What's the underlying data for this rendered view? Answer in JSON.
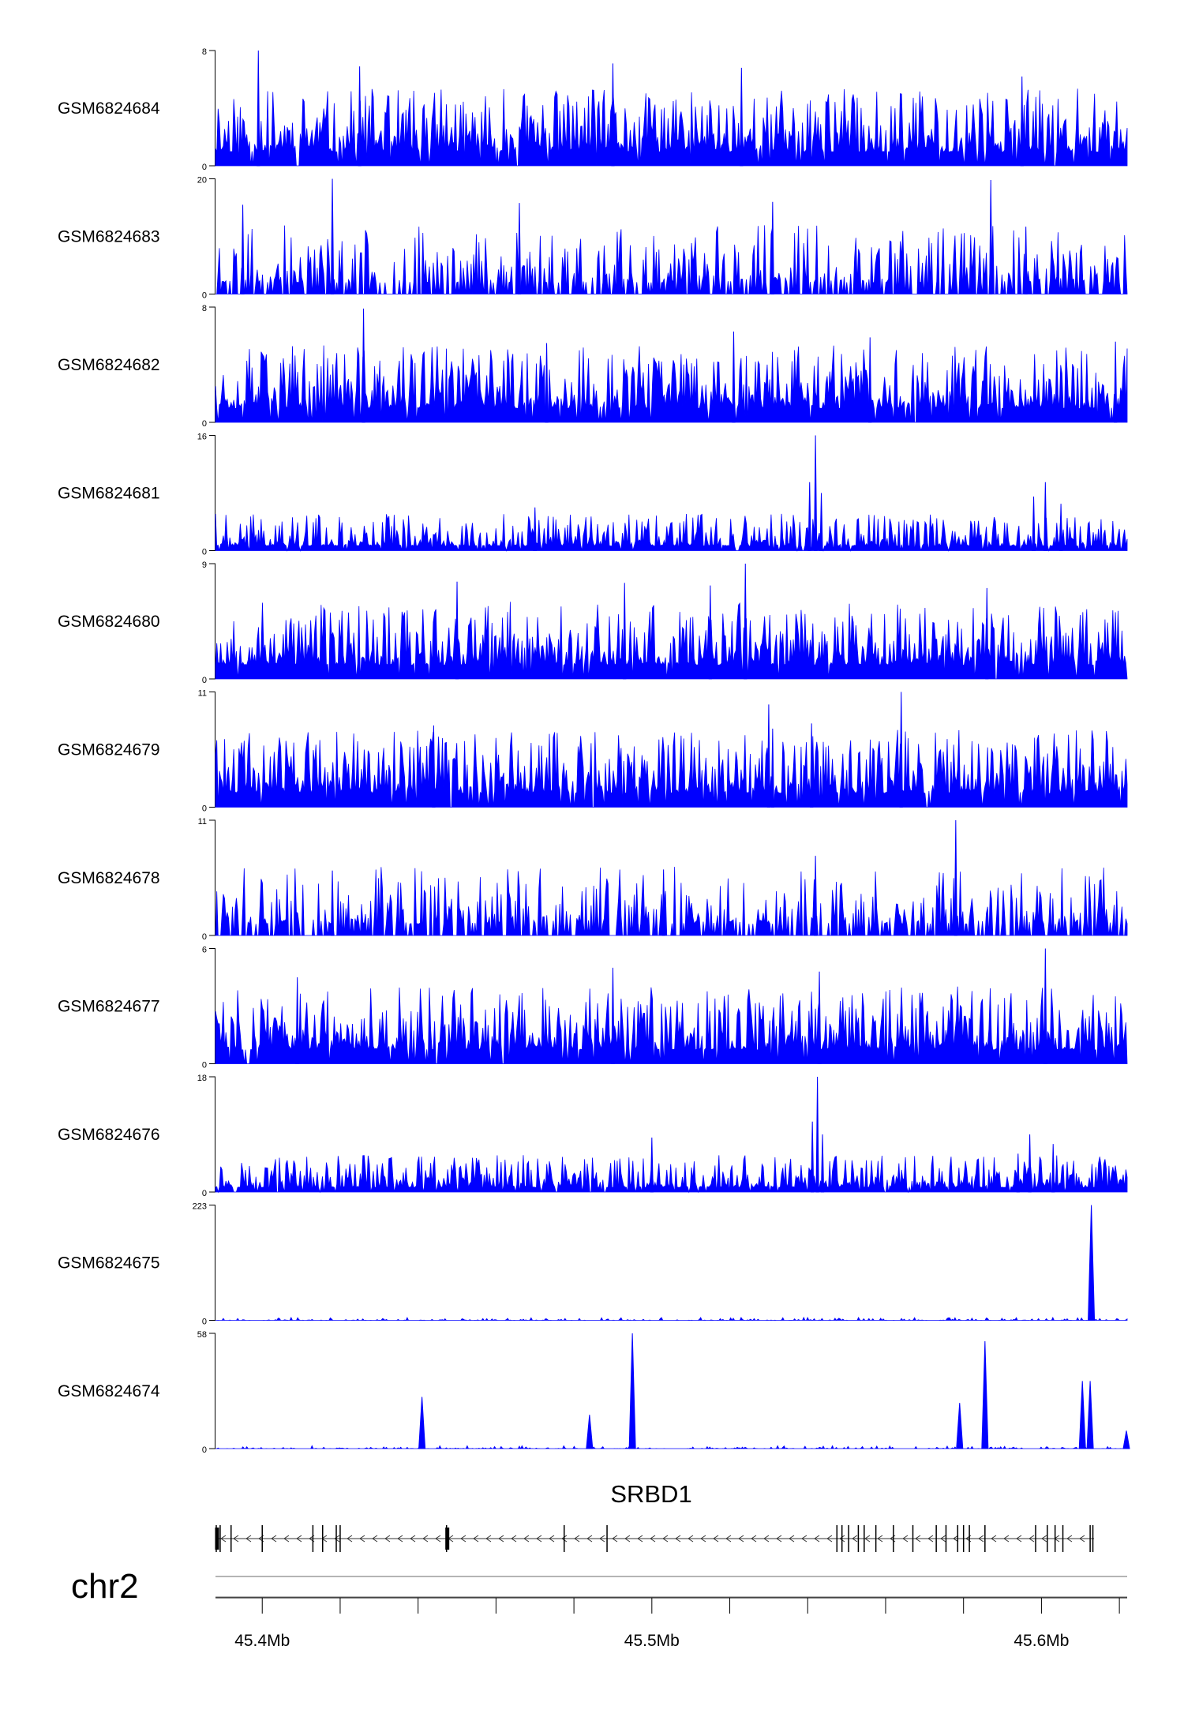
{
  "chart_data": {
    "type": "area",
    "genome": {
      "chromosome": "chr2",
      "x_range_mb": [
        45.388,
        45.622
      ],
      "x_ticks": [
        45.4,
        45.42,
        45.44,
        45.46,
        45.48,
        45.5,
        45.52,
        45.54,
        45.56,
        45.58,
        45.6,
        45.62
      ],
      "x_tick_labels": [
        {
          "value": 45.4,
          "label": "45.4Mb"
        },
        {
          "value": 45.5,
          "label": "45.5Mb"
        },
        {
          "value": 45.6,
          "label": "45.6Mb"
        }
      ]
    },
    "series_color": "#0000ff",
    "tracks": [
      {
        "name": "GSM6824684",
        "ymax": 8,
        "ymax_label": "8",
        "ymin_label": "0",
        "profile": "noise",
        "seed": 11,
        "peaks": [
          {
            "x": 45.399,
            "y": 8
          },
          {
            "x": 45.425,
            "y": 6.9
          },
          {
            "x": 45.49,
            "y": 7.1
          },
          {
            "x": 45.523,
            "y": 6.8
          },
          {
            "x": 45.595,
            "y": 6.2
          }
        ]
      },
      {
        "name": "GSM6824683",
        "ymax": 20,
        "ymax_label": "20",
        "ymin_label": "0",
        "profile": "sparse",
        "seed": 23,
        "peaks": [
          {
            "x": 45.418,
            "y": 20
          },
          {
            "x": 45.395,
            "y": 15.5
          },
          {
            "x": 45.466,
            "y": 15.8
          },
          {
            "x": 45.531,
            "y": 16
          },
          {
            "x": 45.587,
            "y": 19.8
          },
          {
            "x": 45.596,
            "y": 11.7
          }
        ]
      },
      {
        "name": "GSM6824682",
        "ymax": 8,
        "ymax_label": "8",
        "ymin_label": "0",
        "profile": "noise",
        "seed": 37,
        "peaks": [
          {
            "x": 45.426,
            "y": 7.9
          },
          {
            "x": 45.473,
            "y": 5.5
          },
          {
            "x": 45.521,
            "y": 6.3
          },
          {
            "x": 45.556,
            "y": 5.9
          },
          {
            "x": 45.619,
            "y": 5.6
          }
        ]
      },
      {
        "name": "GSM6824681",
        "ymax": 16,
        "ymax_label": "16",
        "ymin_label": "0",
        "profile": "low",
        "seed": 41,
        "peaks": [
          {
            "x": 45.542,
            "y": 16
          },
          {
            "x": 45.5405,
            "y": 9.5
          },
          {
            "x": 45.5435,
            "y": 8
          },
          {
            "x": 45.601,
            "y": 9.5
          },
          {
            "x": 45.598,
            "y": 7.5
          },
          {
            "x": 45.605,
            "y": 6.5
          },
          {
            "x": 45.47,
            "y": 6
          }
        ]
      },
      {
        "name": "GSM6824680",
        "ymax": 9,
        "ymax_label": "9",
        "ymin_label": "0",
        "profile": "noise",
        "seed": 53,
        "peaks": [
          {
            "x": 45.524,
            "y": 9
          },
          {
            "x": 45.45,
            "y": 7.6
          },
          {
            "x": 45.493,
            "y": 7.5
          },
          {
            "x": 45.515,
            "y": 7.3
          },
          {
            "x": 45.586,
            "y": 7.1
          }
        ]
      },
      {
        "name": "GSM6824679",
        "ymax": 11,
        "ymax_label": "11",
        "ymin_label": "0",
        "profile": "noise",
        "seed": 61,
        "peaks": [
          {
            "x": 45.564,
            "y": 11
          },
          {
            "x": 45.53,
            "y": 9.8
          },
          {
            "x": 45.531,
            "y": 7.5
          },
          {
            "x": 45.541,
            "y": 8
          },
          {
            "x": 45.444,
            "y": 7.8
          }
        ]
      },
      {
        "name": "GSM6824678",
        "ymax": 11,
        "ymax_label": "11",
        "ymin_label": "0",
        "profile": "sparse",
        "seed": 73,
        "peaks": [
          {
            "x": 45.578,
            "y": 11
          },
          {
            "x": 45.542,
            "y": 7.6
          },
          {
            "x": 45.503,
            "y": 6.3
          },
          {
            "x": 45.418,
            "y": 6.2
          }
        ]
      },
      {
        "name": "GSM6824677",
        "ymax": 6,
        "ymax_label": "6",
        "ymin_label": "0",
        "profile": "noise",
        "seed": 83,
        "peaks": [
          {
            "x": 45.49,
            "y": 5
          },
          {
            "x": 45.601,
            "y": 6
          },
          {
            "x": 45.543,
            "y": 4.8
          },
          {
            "x": 45.409,
            "y": 4.5
          }
        ]
      },
      {
        "name": "GSM6824676",
        "ymax": 18,
        "ymax_label": "18",
        "ymin_label": "0",
        "profile": "low",
        "seed": 97,
        "peaks": [
          {
            "x": 45.5425,
            "y": 18
          },
          {
            "x": 45.5412,
            "y": 11
          },
          {
            "x": 45.5438,
            "y": 9
          },
          {
            "x": 45.5,
            "y": 8.5
          },
          {
            "x": 45.597,
            "y": 9
          },
          {
            "x": 45.603,
            "y": 7.5
          },
          {
            "x": 45.594,
            "y": 6
          }
        ]
      },
      {
        "name": "GSM6824675",
        "ymax": 223,
        "ymax_label": "223",
        "ymin_label": "0",
        "profile": "flat",
        "seed": 101,
        "peaks": [
          {
            "x": 45.6128,
            "y": 223
          }
        ]
      },
      {
        "name": "GSM6824674",
        "ymax": 58,
        "ymax_label": "58",
        "ymin_label": "0",
        "profile": "flat",
        "seed": 113,
        "peaks": [
          {
            "x": 45.441,
            "y": 26
          },
          {
            "x": 45.484,
            "y": 17
          },
          {
            "x": 45.495,
            "y": 58
          },
          {
            "x": 45.579,
            "y": 23
          },
          {
            "x": 45.5855,
            "y": 54
          },
          {
            "x": 45.6105,
            "y": 34
          },
          {
            "x": 45.6125,
            "y": 34
          },
          {
            "x": 45.6218,
            "y": 9
          }
        ]
      }
    ],
    "gene": {
      "name": "SRBD1",
      "strand": "-",
      "start_mb": 45.388,
      "end_mb": 45.6135,
      "exons_mb": [
        45.3882,
        45.3892,
        45.392,
        45.4,
        45.413,
        45.4155,
        45.419,
        45.42,
        45.4473,
        45.4775,
        45.4885,
        45.5475,
        45.5488,
        45.5505,
        45.553,
        45.5545,
        45.5575,
        45.562,
        45.567,
        45.573,
        45.5755,
        45.5785,
        45.58,
        45.5815,
        45.5855,
        45.5985,
        45.6015,
        45.6035,
        45.6055,
        45.6125,
        45.6132
      ],
      "thick_exons_mb": [
        45.3884,
        45.4475
      ]
    }
  }
}
